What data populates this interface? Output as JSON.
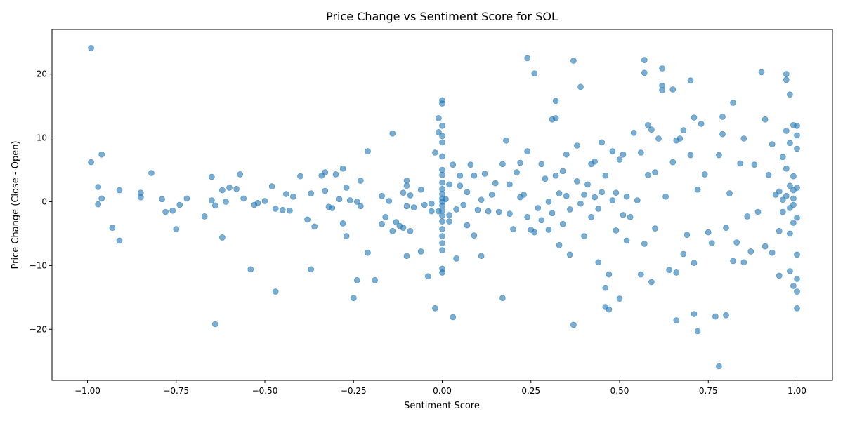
{
  "chart_data": {
    "type": "scatter",
    "title": "Price Change vs Sentiment Score for SOL",
    "xlabel": "Sentiment Score",
    "ylabel": "Price Change (Close - Open)",
    "xlim": [
      -1.1,
      1.1
    ],
    "ylim": [
      -28,
      27
    ],
    "grid": false,
    "x_ticks": [
      -1.0,
      -0.75,
      -0.5,
      -0.25,
      0.0,
      0.25,
      0.5,
      0.75,
      1.0
    ],
    "x_tick_labels": [
      "−1.00",
      "−0.75",
      "−0.50",
      "−0.25",
      "0.00",
      "0.25",
      "0.50",
      "0.75",
      "1.00"
    ],
    "y_ticks": [
      -20,
      -10,
      0,
      10,
      20
    ],
    "y_tick_labels": [
      "−20",
      "−10",
      "0",
      "10",
      "20"
    ],
    "marker_color": "#1f77b4",
    "marker_alpha": 0.6,
    "series": [
      {
        "points": [
          [
            -0.99,
            24.1
          ],
          [
            -0.99,
            6.2
          ],
          [
            -0.97,
            2.3
          ],
          [
            -0.97,
            -0.4
          ],
          [
            -0.96,
            7.4
          ],
          [
            -0.96,
            0.5
          ],
          [
            -0.93,
            -4.1
          ],
          [
            -0.91,
            1.8
          ],
          [
            -0.91,
            -6.1
          ],
          [
            -0.85,
            1.4
          ],
          [
            -0.85,
            0.7
          ],
          [
            -0.82,
            4.5
          ],
          [
            -0.79,
            0.4
          ],
          [
            -0.78,
            -1.6
          ],
          [
            -0.76,
            -1.4
          ],
          [
            -0.75,
            -4.3
          ],
          [
            -0.74,
            -0.5
          ],
          [
            -0.72,
            0.5
          ],
          [
            -0.67,
            -2.3
          ],
          [
            -0.65,
            3.9
          ],
          [
            -0.65,
            0.2
          ],
          [
            -0.64,
            -0.6
          ],
          [
            -0.64,
            -19.2
          ],
          [
            -0.62,
            1.8
          ],
          [
            -0.62,
            -5.6
          ],
          [
            -0.61,
            0.0
          ],
          [
            -0.6,
            2.2
          ],
          [
            -0.58,
            2.0
          ],
          [
            -0.57,
            4.3
          ],
          [
            -0.56,
            0.5
          ],
          [
            -0.54,
            -10.6
          ],
          [
            -0.53,
            -0.5
          ],
          [
            -0.52,
            -0.2
          ],
          [
            -0.5,
            0.1
          ],
          [
            -0.48,
            2.4
          ],
          [
            -0.47,
            -14.1
          ],
          [
            -0.47,
            -1.1
          ],
          [
            -0.45,
            -1.3
          ],
          [
            -0.44,
            1.2
          ],
          [
            -0.43,
            -1.4
          ],
          [
            -0.42,
            0.8
          ],
          [
            -0.4,
            4.0
          ],
          [
            -0.38,
            -2.8
          ],
          [
            -0.37,
            1.3
          ],
          [
            -0.37,
            -10.6
          ],
          [
            -0.36,
            -3.9
          ],
          [
            -0.34,
            4.1
          ],
          [
            -0.33,
            4.6
          ],
          [
            -0.33,
            1.7
          ],
          [
            -0.32,
            -0.8
          ],
          [
            -0.31,
            -1.0
          ],
          [
            -0.3,
            4.3
          ],
          [
            -0.29,
            0.4
          ],
          [
            -0.28,
            5.2
          ],
          [
            -0.28,
            -3.4
          ],
          [
            -0.27,
            2.2
          ],
          [
            -0.27,
            -5.4
          ],
          [
            -0.26,
            0.2
          ],
          [
            -0.25,
            -15.1
          ],
          [
            -0.24,
            0.0
          ],
          [
            -0.23,
            3.3
          ],
          [
            -0.23,
            -0.7
          ],
          [
            -0.24,
            -12.3
          ],
          [
            -0.21,
            7.9
          ],
          [
            -0.21,
            -8.0
          ],
          [
            -0.19,
            -12.3
          ],
          [
            -0.17,
            0.9
          ],
          [
            -0.17,
            -3.5
          ],
          [
            -0.16,
            -2.4
          ],
          [
            -0.15,
            0.1
          ],
          [
            -0.14,
            10.7
          ],
          [
            -0.14,
            -4.6
          ],
          [
            -0.13,
            -3.2
          ],
          [
            -0.12,
            -3.8
          ],
          [
            -0.11,
            -4.1
          ],
          [
            -0.11,
            1.4
          ],
          [
            -0.1,
            2.5
          ],
          [
            -0.1,
            3.3
          ],
          [
            -0.1,
            -0.7
          ],
          [
            -0.1,
            -8.5
          ],
          [
            -0.09,
            1.0
          ],
          [
            -0.09,
            -4.6
          ],
          [
            -0.08,
            -0.9
          ],
          [
            -0.06,
            1.9
          ],
          [
            -0.06,
            -7.8
          ],
          [
            -0.05,
            -0.5
          ],
          [
            -0.04,
            -11.7
          ],
          [
            -0.03,
            -0.3
          ],
          [
            -0.03,
            -1.5
          ],
          [
            -0.02,
            -16.7
          ],
          [
            -0.02,
            7.7
          ],
          [
            -0.01,
            13.1
          ],
          [
            -0.01,
            -1.5
          ],
          [
            0.0,
            15.9
          ],
          [
            0.0,
            15.4
          ],
          [
            0.0,
            11.9
          ],
          [
            0.0,
            10.3
          ],
          [
            0.0,
            9.3
          ],
          [
            0.0,
            7.1
          ],
          [
            0.0,
            5.0
          ],
          [
            0.0,
            4.2
          ],
          [
            0.0,
            3.0
          ],
          [
            0.0,
            2.0
          ],
          [
            0.0,
            1.2
          ],
          [
            0.0,
            0.5
          ],
          [
            0.0,
            0.0
          ],
          [
            0.0,
            -0.6
          ],
          [
            0.0,
            -1.4
          ],
          [
            0.0,
            -2.2
          ],
          [
            0.0,
            -3.1
          ],
          [
            0.0,
            -4.3
          ],
          [
            0.0,
            -5.4
          ],
          [
            0.0,
            -6.5
          ],
          [
            0.0,
            -7.6
          ],
          [
            0.0,
            -10.5
          ],
          [
            0.0,
            -11.1
          ],
          [
            -0.01,
            10.9
          ],
          [
            0.01,
            0.4
          ],
          [
            0.02,
            -2.1
          ],
          [
            0.02,
            -3.1
          ],
          [
            0.02,
            2.7
          ],
          [
            0.03,
            5.8
          ],
          [
            0.03,
            -18.1
          ],
          [
            0.04,
            -8.9
          ],
          [
            0.04,
            -1.2
          ],
          [
            0.05,
            2.5
          ],
          [
            0.05,
            4.1
          ],
          [
            0.06,
            -0.5
          ],
          [
            0.07,
            1.5
          ],
          [
            0.07,
            -3.7
          ],
          [
            0.08,
            5.8
          ],
          [
            0.09,
            4.1
          ],
          [
            0.09,
            -5.3
          ],
          [
            0.1,
            -1.3
          ],
          [
            0.11,
            0.3
          ],
          [
            0.11,
            -8.5
          ],
          [
            0.12,
            4.4
          ],
          [
            0.13,
            -1.5
          ],
          [
            0.14,
            1.1
          ],
          [
            0.15,
            2.9
          ],
          [
            0.16,
            -1.6
          ],
          [
            0.17,
            -15.1
          ],
          [
            0.17,
            5.9
          ],
          [
            0.18,
            9.6
          ],
          [
            0.19,
            -1.9
          ],
          [
            0.19,
            2.7
          ],
          [
            0.2,
            -4.3
          ],
          [
            0.21,
            4.6
          ],
          [
            0.22,
            0.7
          ],
          [
            0.22,
            6.1
          ],
          [
            0.23,
            1.1
          ],
          [
            0.24,
            22.5
          ],
          [
            0.24,
            7.9
          ],
          [
            0.24,
            -2.4
          ],
          [
            0.25,
            -4.4
          ],
          [
            0.26,
            20.1
          ],
          [
            0.26,
            -4.8
          ],
          [
            0.27,
            -1.0
          ],
          [
            0.28,
            5.9
          ],
          [
            0.28,
            -2.9
          ],
          [
            0.29,
            3.6
          ],
          [
            0.3,
            0.0
          ],
          [
            0.3,
            -4.4
          ],
          [
            0.31,
            12.9
          ],
          [
            0.31,
            -1.8
          ],
          [
            0.32,
            15.8
          ],
          [
            0.32,
            13.1
          ],
          [
            0.32,
            4.1
          ],
          [
            0.33,
            1.3
          ],
          [
            0.33,
            -6.8
          ],
          [
            0.34,
            4.8
          ],
          [
            0.34,
            -3.5
          ],
          [
            0.35,
            0.9
          ],
          [
            0.35,
            7.4
          ],
          [
            0.36,
            -1.2
          ],
          [
            0.36,
            -8.3
          ],
          [
            0.37,
            22.1
          ],
          [
            0.37,
            -19.3
          ],
          [
            0.38,
            8.8
          ],
          [
            0.38,
            3.2
          ],
          [
            0.39,
            18.0
          ],
          [
            0.39,
            -0.3
          ],
          [
            0.4,
            1.1
          ],
          [
            0.4,
            -5.4
          ],
          [
            0.41,
            2.7
          ],
          [
            0.42,
            5.9
          ],
          [
            0.42,
            -2.4
          ],
          [
            0.43,
            6.3
          ],
          [
            0.43,
            0.7
          ],
          [
            0.44,
            -9.5
          ],
          [
            0.44,
            -1.1
          ],
          [
            0.45,
            9.3
          ],
          [
            0.45,
            1.5
          ],
          [
            0.46,
            -13.5
          ],
          [
            0.46,
            -16.5
          ],
          [
            0.46,
            4.1
          ],
          [
            0.47,
            -11.4
          ],
          [
            0.47,
            -16.9
          ],
          [
            0.48,
            7.9
          ],
          [
            0.48,
            0.2
          ],
          [
            0.49,
            1.4
          ],
          [
            0.49,
            -4.5
          ],
          [
            0.5,
            6.6
          ],
          [
            0.5,
            -15.2
          ],
          [
            0.51,
            7.4
          ],
          [
            0.51,
            -2.1
          ],
          [
            0.52,
            0.8
          ],
          [
            0.52,
            -6.1
          ],
          [
            0.53,
            -2.4
          ],
          [
            0.54,
            10.8
          ],
          [
            0.55,
            0.2
          ],
          [
            0.56,
            7.7
          ],
          [
            0.56,
            -11.4
          ],
          [
            0.57,
            22.2
          ],
          [
            0.57,
            20.2
          ],
          [
            0.57,
            -6.6
          ],
          [
            0.58,
            12.0
          ],
          [
            0.58,
            4.2
          ],
          [
            0.59,
            11.3
          ],
          [
            0.59,
            -12.6
          ],
          [
            0.6,
            4.6
          ],
          [
            0.6,
            -4.2
          ],
          [
            0.61,
            9.9
          ],
          [
            0.62,
            20.9
          ],
          [
            0.62,
            18.2
          ],
          [
            0.62,
            17.5
          ],
          [
            0.63,
            0.8
          ],
          [
            0.64,
            -10.7
          ],
          [
            0.65,
            17.6
          ],
          [
            0.65,
            6.2
          ],
          [
            0.66,
            -18.6
          ],
          [
            0.66,
            -11.1
          ],
          [
            0.66,
            9.6
          ],
          [
            0.67,
            9.9
          ],
          [
            0.68,
            -8.2
          ],
          [
            0.68,
            11.2
          ],
          [
            0.69,
            -5.2
          ],
          [
            0.7,
            19.0
          ],
          [
            0.7,
            7.3
          ],
          [
            0.71,
            -17.6
          ],
          [
            0.71,
            -9.6
          ],
          [
            0.71,
            13.2
          ],
          [
            0.72,
            -20.3
          ],
          [
            0.72,
            1.9
          ],
          [
            0.73,
            12.2
          ],
          [
            0.74,
            4.3
          ],
          [
            0.75,
            -4.8
          ],
          [
            0.76,
            -6.5
          ],
          [
            0.77,
            -18.0
          ],
          [
            0.78,
            -25.8
          ],
          [
            0.78,
            7.3
          ],
          [
            0.79,
            13.3
          ],
          [
            0.79,
            10.6
          ],
          [
            0.8,
            -17.8
          ],
          [
            0.8,
            -4.1
          ],
          [
            0.81,
            1.3
          ],
          [
            0.82,
            15.5
          ],
          [
            0.82,
            -9.3
          ],
          [
            0.83,
            -6.4
          ],
          [
            0.84,
            6.0
          ],
          [
            0.85,
            -9.5
          ],
          [
            0.85,
            9.9
          ],
          [
            0.86,
            -2.3
          ],
          [
            0.87,
            -7.8
          ],
          [
            0.88,
            5.8
          ],
          [
            0.89,
            -1.6
          ],
          [
            0.9,
            20.3
          ],
          [
            0.91,
            12.9
          ],
          [
            0.91,
            -7.0
          ],
          [
            0.92,
            4.2
          ],
          [
            0.93,
            9.0
          ],
          [
            0.93,
            -8.0
          ],
          [
            0.94,
            1.1
          ],
          [
            0.95,
            -11.6
          ],
          [
            0.95,
            -4.6
          ],
          [
            0.96,
            7.0
          ],
          [
            0.96,
            0.3
          ],
          [
            0.97,
            20.0
          ],
          [
            0.97,
            19.1
          ],
          [
            0.97,
            11.1
          ],
          [
            0.98,
            16.8
          ],
          [
            0.98,
            -10.9
          ],
          [
            0.98,
            9.2
          ],
          [
            0.99,
            12.0
          ],
          [
            0.99,
            -13.2
          ],
          [
            0.99,
            4.0
          ],
          [
            0.99,
            0.5
          ],
          [
            1.0,
            11.9
          ],
          [
            1.0,
            10.4
          ],
          [
            1.0,
            8.3
          ],
          [
            1.0,
            -8.3
          ],
          [
            1.0,
            -12.1
          ],
          [
            1.0,
            -14.1
          ],
          [
            1.0,
            -16.7
          ],
          [
            1.0,
            2.2
          ],
          [
            1.0,
            -2.5
          ],
          [
            0.98,
            2.5
          ],
          [
            0.98,
            -1.0
          ],
          [
            0.97,
            0.9
          ],
          [
            0.99,
            -0.5
          ],
          [
            0.96,
            -1.6
          ],
          [
            0.95,
            1.6
          ],
          [
            0.99,
            -3.3
          ],
          [
            0.97,
            5.2
          ],
          [
            0.98,
            -5.0
          ],
          [
            0.99,
            1.8
          ]
        ]
      }
    ]
  }
}
